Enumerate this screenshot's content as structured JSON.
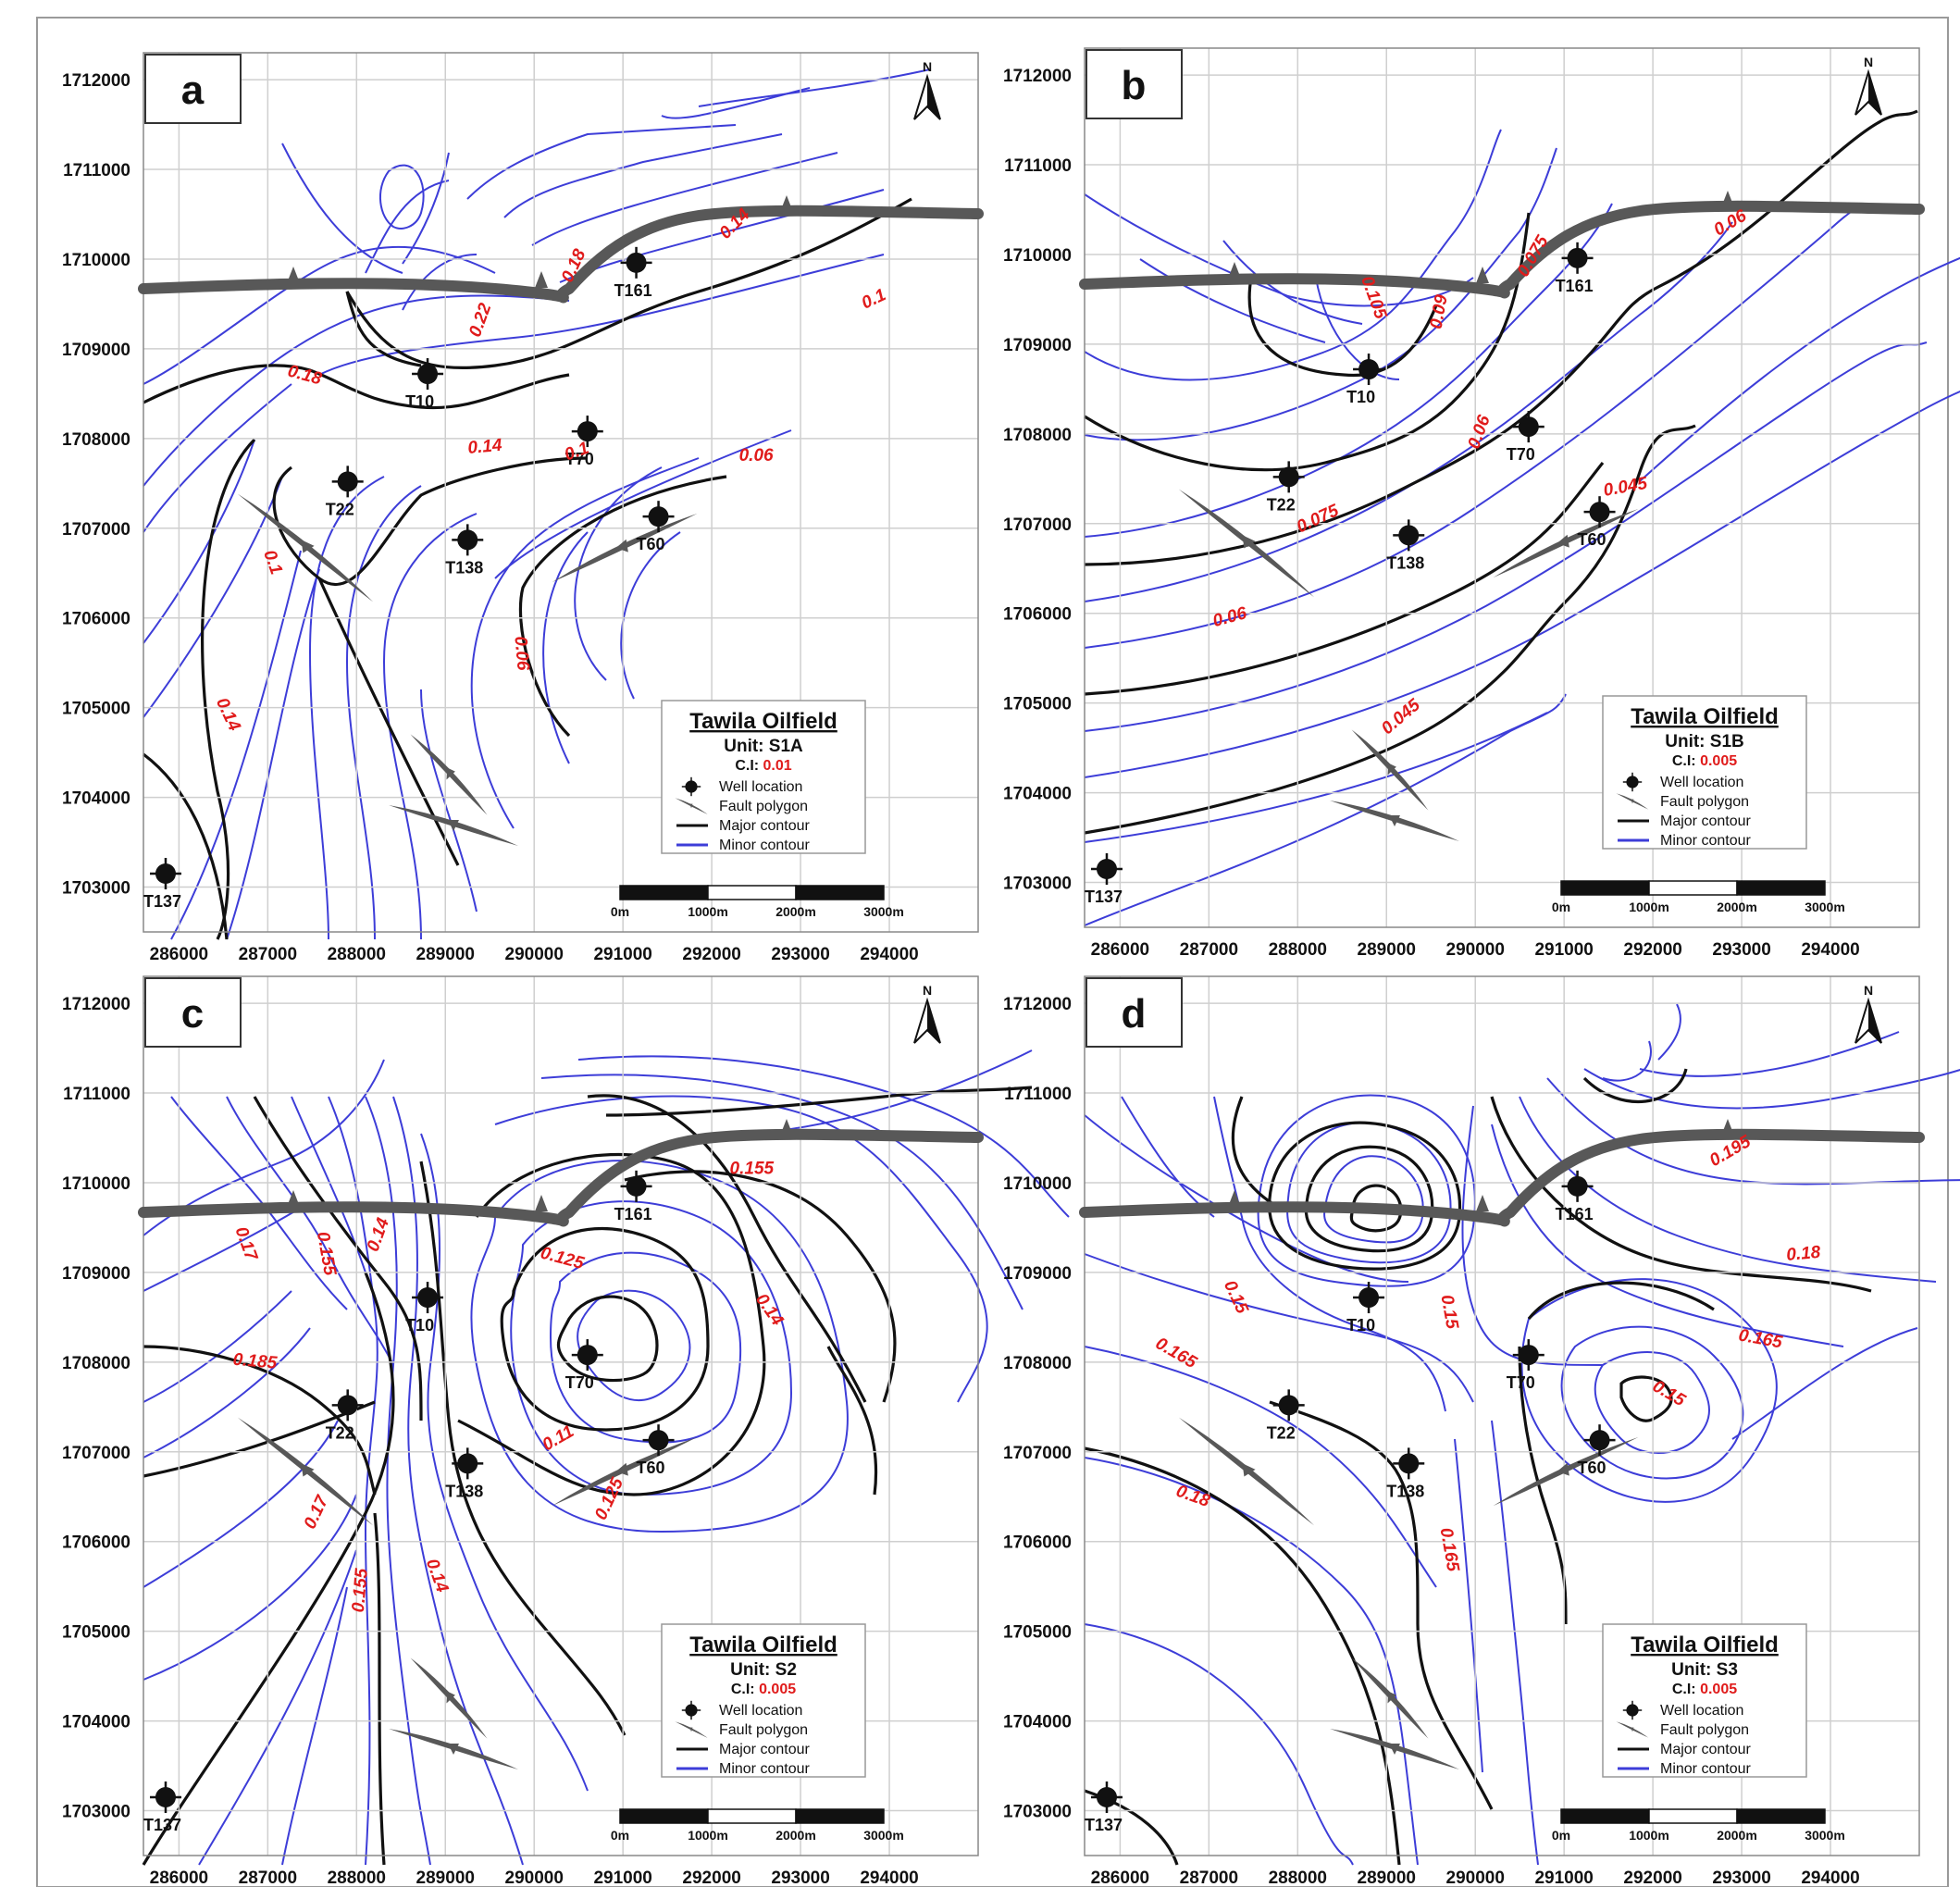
{
  "figure": {
    "x_ticks": [
      "286000",
      "287000",
      "288000",
      "289000",
      "290000",
      "291000",
      "292000",
      "293000",
      "294000"
    ],
    "y_ticks": [
      "1712000",
      "1711000",
      "1710000",
      "1709000",
      "1708000",
      "1707000",
      "1706000",
      "1705000",
      "1704000",
      "1703000"
    ],
    "north_label": "N",
    "legend_common": {
      "title": "Tawila Oilfield",
      "ci_prefix": "C.I:",
      "items": [
        {
          "label": "Well location",
          "symbol": "well-icon"
        },
        {
          "label": "Fault polygon",
          "symbol": "fault-icon"
        },
        {
          "label": "Major contour",
          "symbol": "major-line",
          "color": "#111111"
        },
        {
          "label": "Minor contour",
          "symbol": "minor-line",
          "color": "#3d3dd8"
        }
      ],
      "scalebar": [
        "0m",
        "1000m",
        "2000m",
        "3000m"
      ]
    },
    "colors": {
      "major": "#111111",
      "minor": "#3d3dd8",
      "label": "#e01b1b",
      "fault": "#585858"
    }
  },
  "wells": [
    {
      "name": "T161",
      "x": 291150,
      "y": 1709960
    },
    {
      "name": "T10",
      "x": 288800,
      "y": 1708720
    },
    {
      "name": "T70",
      "x": 290600,
      "y": 1708080
    },
    {
      "name": "T22",
      "x": 287900,
      "y": 1707520
    },
    {
      "name": "T60",
      "x": 291400,
      "y": 1707130
    },
    {
      "name": "T138",
      "x": 289250,
      "y": 1706870
    },
    {
      "name": "T137",
      "x": 285850,
      "y": 1703150
    }
  ],
  "panels": [
    {
      "letter": "a",
      "unit": "Unit: S1A",
      "ci": "0.01",
      "contour_labels": [
        {
          "text": "0.22",
          "x": 289450,
          "y": 1709300,
          "rot": -70
        },
        {
          "text": "0.18",
          "x": 287400,
          "y": 1708650,
          "rot": 15
        },
        {
          "text": "0.14",
          "x": 289450,
          "y": 1707850,
          "rot": -5
        },
        {
          "text": "0.18",
          "x": 290500,
          "y": 1709900,
          "rot": -65
        },
        {
          "text": "0.14",
          "x": 292300,
          "y": 1710350,
          "rot": -45
        },
        {
          "text": "0.1",
          "x": 293850,
          "y": 1709500,
          "rot": -25
        },
        {
          "text": "0.06",
          "x": 292500,
          "y": 1707750,
          "rot": 0
        },
        {
          "text": "0.1",
          "x": 290500,
          "y": 1707800,
          "rot": -20
        },
        {
          "text": "0.1",
          "x": 287000,
          "y": 1706600,
          "rot": 70
        },
        {
          "text": "0.14",
          "x": 286500,
          "y": 1704900,
          "rot": 65
        },
        {
          "text": "0.06",
          "x": 289800,
          "y": 1705600,
          "rot": 85
        }
      ]
    },
    {
      "letter": "b",
      "unit": "Unit: S1B",
      "ci": "0.005",
      "contour_labels": [
        {
          "text": "0.105",
          "x": 288800,
          "y": 1709500,
          "rot": 70
        },
        {
          "text": "0.09",
          "x": 289650,
          "y": 1709350,
          "rot": -80
        },
        {
          "text": "0.075",
          "x": 290700,
          "y": 1709950,
          "rot": -60
        },
        {
          "text": "0.06",
          "x": 292900,
          "y": 1710300,
          "rot": -30
        },
        {
          "text": "0.075",
          "x": 288250,
          "y": 1707000,
          "rot": -25
        },
        {
          "text": "0.06",
          "x": 287250,
          "y": 1705900,
          "rot": -15
        },
        {
          "text": "0.045",
          "x": 291700,
          "y": 1707350,
          "rot": -10
        },
        {
          "text": "0.045",
          "x": 289200,
          "y": 1704800,
          "rot": -40
        },
        {
          "text": "0.06",
          "x": 290100,
          "y": 1708000,
          "rot": -70
        }
      ]
    },
    {
      "letter": "c",
      "unit": "Unit: S2",
      "ci": "0.005",
      "contour_labels": [
        {
          "text": "0.155",
          "x": 292450,
          "y": 1710100,
          "rot": 0
        },
        {
          "text": "0.17",
          "x": 286700,
          "y": 1709300,
          "rot": 70
        },
        {
          "text": "0.155",
          "x": 287600,
          "y": 1709200,
          "rot": 80
        },
        {
          "text": "0.14",
          "x": 288300,
          "y": 1709400,
          "rot": -70
        },
        {
          "text": "0.125",
          "x": 290300,
          "y": 1709100,
          "rot": 15
        },
        {
          "text": "0.14",
          "x": 292600,
          "y": 1708550,
          "rot": 55
        },
        {
          "text": "0.185",
          "x": 286850,
          "y": 1707950,
          "rot": 5
        },
        {
          "text": "0.11",
          "x": 290300,
          "y": 1707100,
          "rot": -30
        },
        {
          "text": "0.125",
          "x": 290900,
          "y": 1706450,
          "rot": -65
        },
        {
          "text": "0.17",
          "x": 287600,
          "y": 1706300,
          "rot": -65
        },
        {
          "text": "0.155",
          "x": 288100,
          "y": 1705450,
          "rot": -85
        },
        {
          "text": "0.14",
          "x": 288850,
          "y": 1705600,
          "rot": 70
        }
      ]
    },
    {
      "letter": "d",
      "unit": "Unit: S3",
      "ci": "0.005",
      "contour_labels": [
        {
          "text": "0.195",
          "x": 292900,
          "y": 1710300,
          "rot": -30
        },
        {
          "text": "0.18",
          "x": 293700,
          "y": 1709150,
          "rot": -5
        },
        {
          "text": "0.165",
          "x": 293200,
          "y": 1708200,
          "rot": 10
        },
        {
          "text": "0.15",
          "x": 292150,
          "y": 1707600,
          "rot": 30
        },
        {
          "text": "0.15",
          "x": 287250,
          "y": 1708700,
          "rot": 65
        },
        {
          "text": "0.165",
          "x": 286600,
          "y": 1708050,
          "rot": 30
        },
        {
          "text": "0.15",
          "x": 289650,
          "y": 1708550,
          "rot": 80
        },
        {
          "text": "0.165",
          "x": 289650,
          "y": 1705900,
          "rot": 80
        },
        {
          "text": "0.18",
          "x": 286800,
          "y": 1706450,
          "rot": 20
        }
      ]
    }
  ]
}
